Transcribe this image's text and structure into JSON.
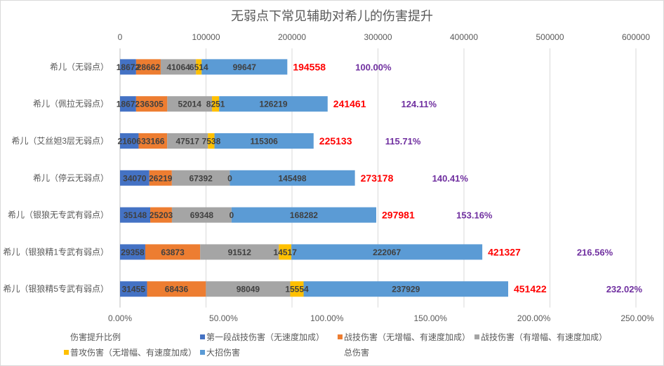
{
  "chart_data": {
    "type": "bar",
    "stacked": true,
    "title": "无弱点下常见辅助对希儿的伤害提升",
    "categories": [
      "希儿（无弱点）",
      "希儿（佩拉无弱点）",
      "希儿（艾丝妲3层无弱点）",
      "希儿（停云无弱点）",
      "希儿（银狼无专武有弱点）",
      "希儿（银狼精1专武有弱点）",
      "希儿（银狼精5专武有弱点）"
    ],
    "series": [
      {
        "name": "第一段战技伤害（无速度加成）",
        "color": "#4472C4",
        "values": [
          18672,
          18672,
          21606,
          34070,
          35148,
          29358,
          31455
        ]
      },
      {
        "name": "战技伤害（无增幅、有速度加成）",
        "color": "#ED7D31",
        "values": [
          28662,
          36305,
          33166,
          26219,
          25203,
          63873,
          68436
        ]
      },
      {
        "name": "战技伤害（有增幅、有速度加成）",
        "color": "#A5A5A5",
        "values": [
          41064,
          52014,
          47517,
          67392,
          69348,
          91512,
          98049
        ]
      },
      {
        "name": "普攻伤害（无增幅、有速度加成）",
        "color": "#FFC000",
        "values": [
          6514,
          8251,
          7538,
          0,
          0,
          14517,
          15554
        ]
      },
      {
        "name": "大招伤害",
        "color": "#5B9BD5",
        "values": [
          99647,
          126219,
          115306,
          145498,
          168282,
          222067,
          237929
        ]
      }
    ],
    "total": {
      "name": "总伤害",
      "color": "#FF0000",
      "values": [
        194558,
        241461,
        225133,
        273178,
        297981,
        421327,
        451422
      ]
    },
    "ratio": {
      "name": "伤害提升比例",
      "color": "#7030A0",
      "labels": [
        "100.00%",
        "124.11%",
        "115.71%",
        "140.41%",
        "153.16%",
        "216.56%",
        "232.02%"
      ]
    },
    "x_axis_top": {
      "range": [
        0,
        600000
      ],
      "ticks": [
        0,
        100000,
        200000,
        300000,
        400000,
        500000,
        600000
      ]
    },
    "x_axis_bottom": {
      "range": [
        0,
        2.5
      ],
      "tick_labels": [
        "0.00%",
        "50.00%",
        "100.00%",
        "150.00%",
        "200.00%",
        "250.00%"
      ]
    },
    "grid": true,
    "legend_position": "bottom"
  }
}
